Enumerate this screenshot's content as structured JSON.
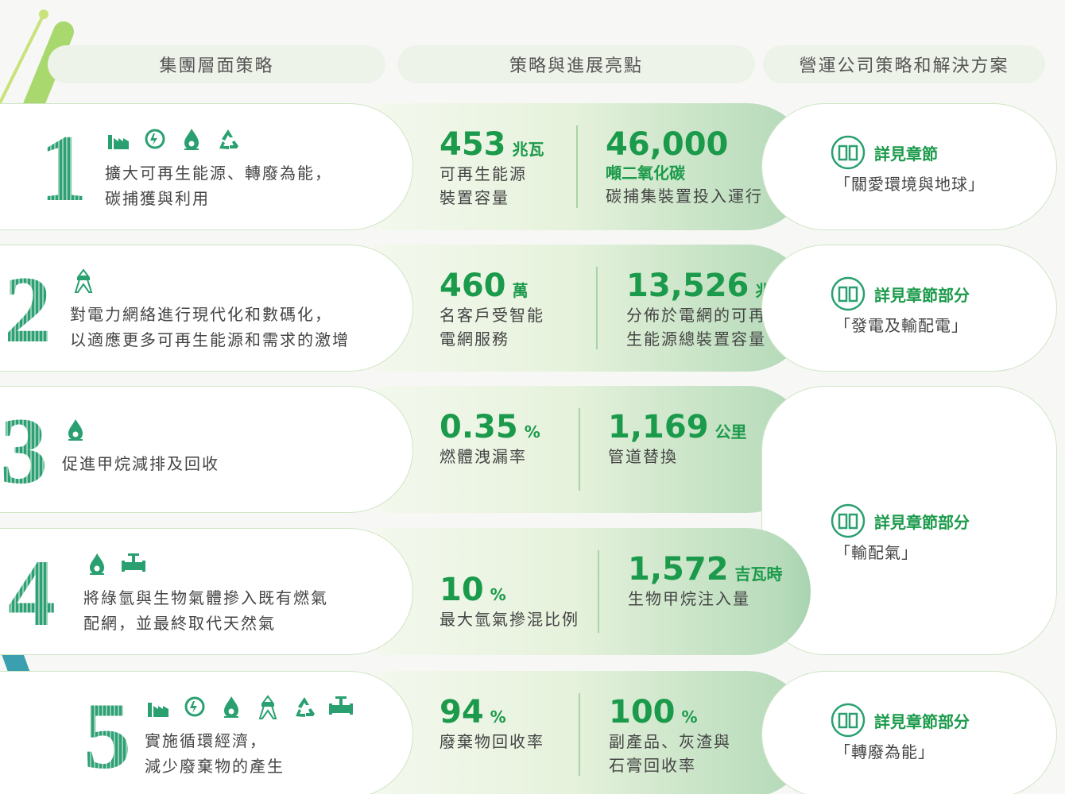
{
  "headers": [
    "集團層面策略",
    "策略與進展亮點",
    "營運公司策略和解決方案"
  ],
  "rows": [
    {
      "number": "1",
      "strategy": [
        "擴大可再生能源、轉廢為能，",
        "碳捕獲與利用"
      ],
      "stats": [
        {
          "value": "453",
          "unit": "兆瓦",
          "label": [
            "可再生能源",
            "裝置容量"
          ]
        },
        {
          "value": "46,000",
          "unit": "噸二氧化碳",
          "label": [
            "碳捕集裝置投入運行"
          ]
        }
      ],
      "reference": {
        "title": "詳見章節",
        "chapter": "「關愛環境與地球」"
      }
    },
    {
      "number": "2",
      "strategy": [
        "對電力網絡進行現代化和數碼化，",
        "以適應更多可再生能源和需求的激增"
      ],
      "stats": [
        {
          "value": "460",
          "unit": "萬",
          "label": [
            "名客戶受智能",
            "電網服務"
          ]
        },
        {
          "value": "13,526",
          "unit": "兆瓦",
          "label": [
            "分佈於電網的可再",
            "生能源總裝置容量"
          ]
        }
      ],
      "reference": {
        "title": "詳見章節部分",
        "chapter": "「發電及輸配電」"
      }
    },
    {
      "number": "3",
      "strategy": [
        "促進甲烷減排及回收"
      ],
      "stats": [
        {
          "value": "0.35",
          "unit": "%",
          "label": [
            "燃體洩漏率"
          ]
        },
        {
          "value": "1,169",
          "unit": "公里",
          "label": [
            "管道替換"
          ]
        }
      ],
      "reference": {
        "title": "詳見章節部分",
        "chapter": "「輸配氣」"
      }
    },
    {
      "number": "4",
      "strategy": [
        "將綠氫與生物氣體摻入既有燃氣",
        "配網，並最終取代天然氣"
      ],
      "stats": [
        {
          "value": "10",
          "unit": "%",
          "label": [
            "最大氫氣摻混比例"
          ]
        },
        {
          "value": "1,572",
          "unit": "吉瓦時",
          "label": [
            "生物甲烷注入量"
          ]
        }
      ]
    },
    {
      "number": "5",
      "strategy": [
        "實施循環經濟，",
        "減少廢棄物的產生"
      ],
      "stats": [
        {
          "value": "94",
          "unit": "%",
          "label": [
            "廢棄物回收率"
          ]
        },
        {
          "value": "100",
          "unit": "%",
          "label": [
            "副產品、灰渣與",
            "石膏回收率"
          ]
        }
      ],
      "reference": {
        "title": "詳見章節部分",
        "chapter": "「轉廢為能」"
      }
    }
  ]
}
